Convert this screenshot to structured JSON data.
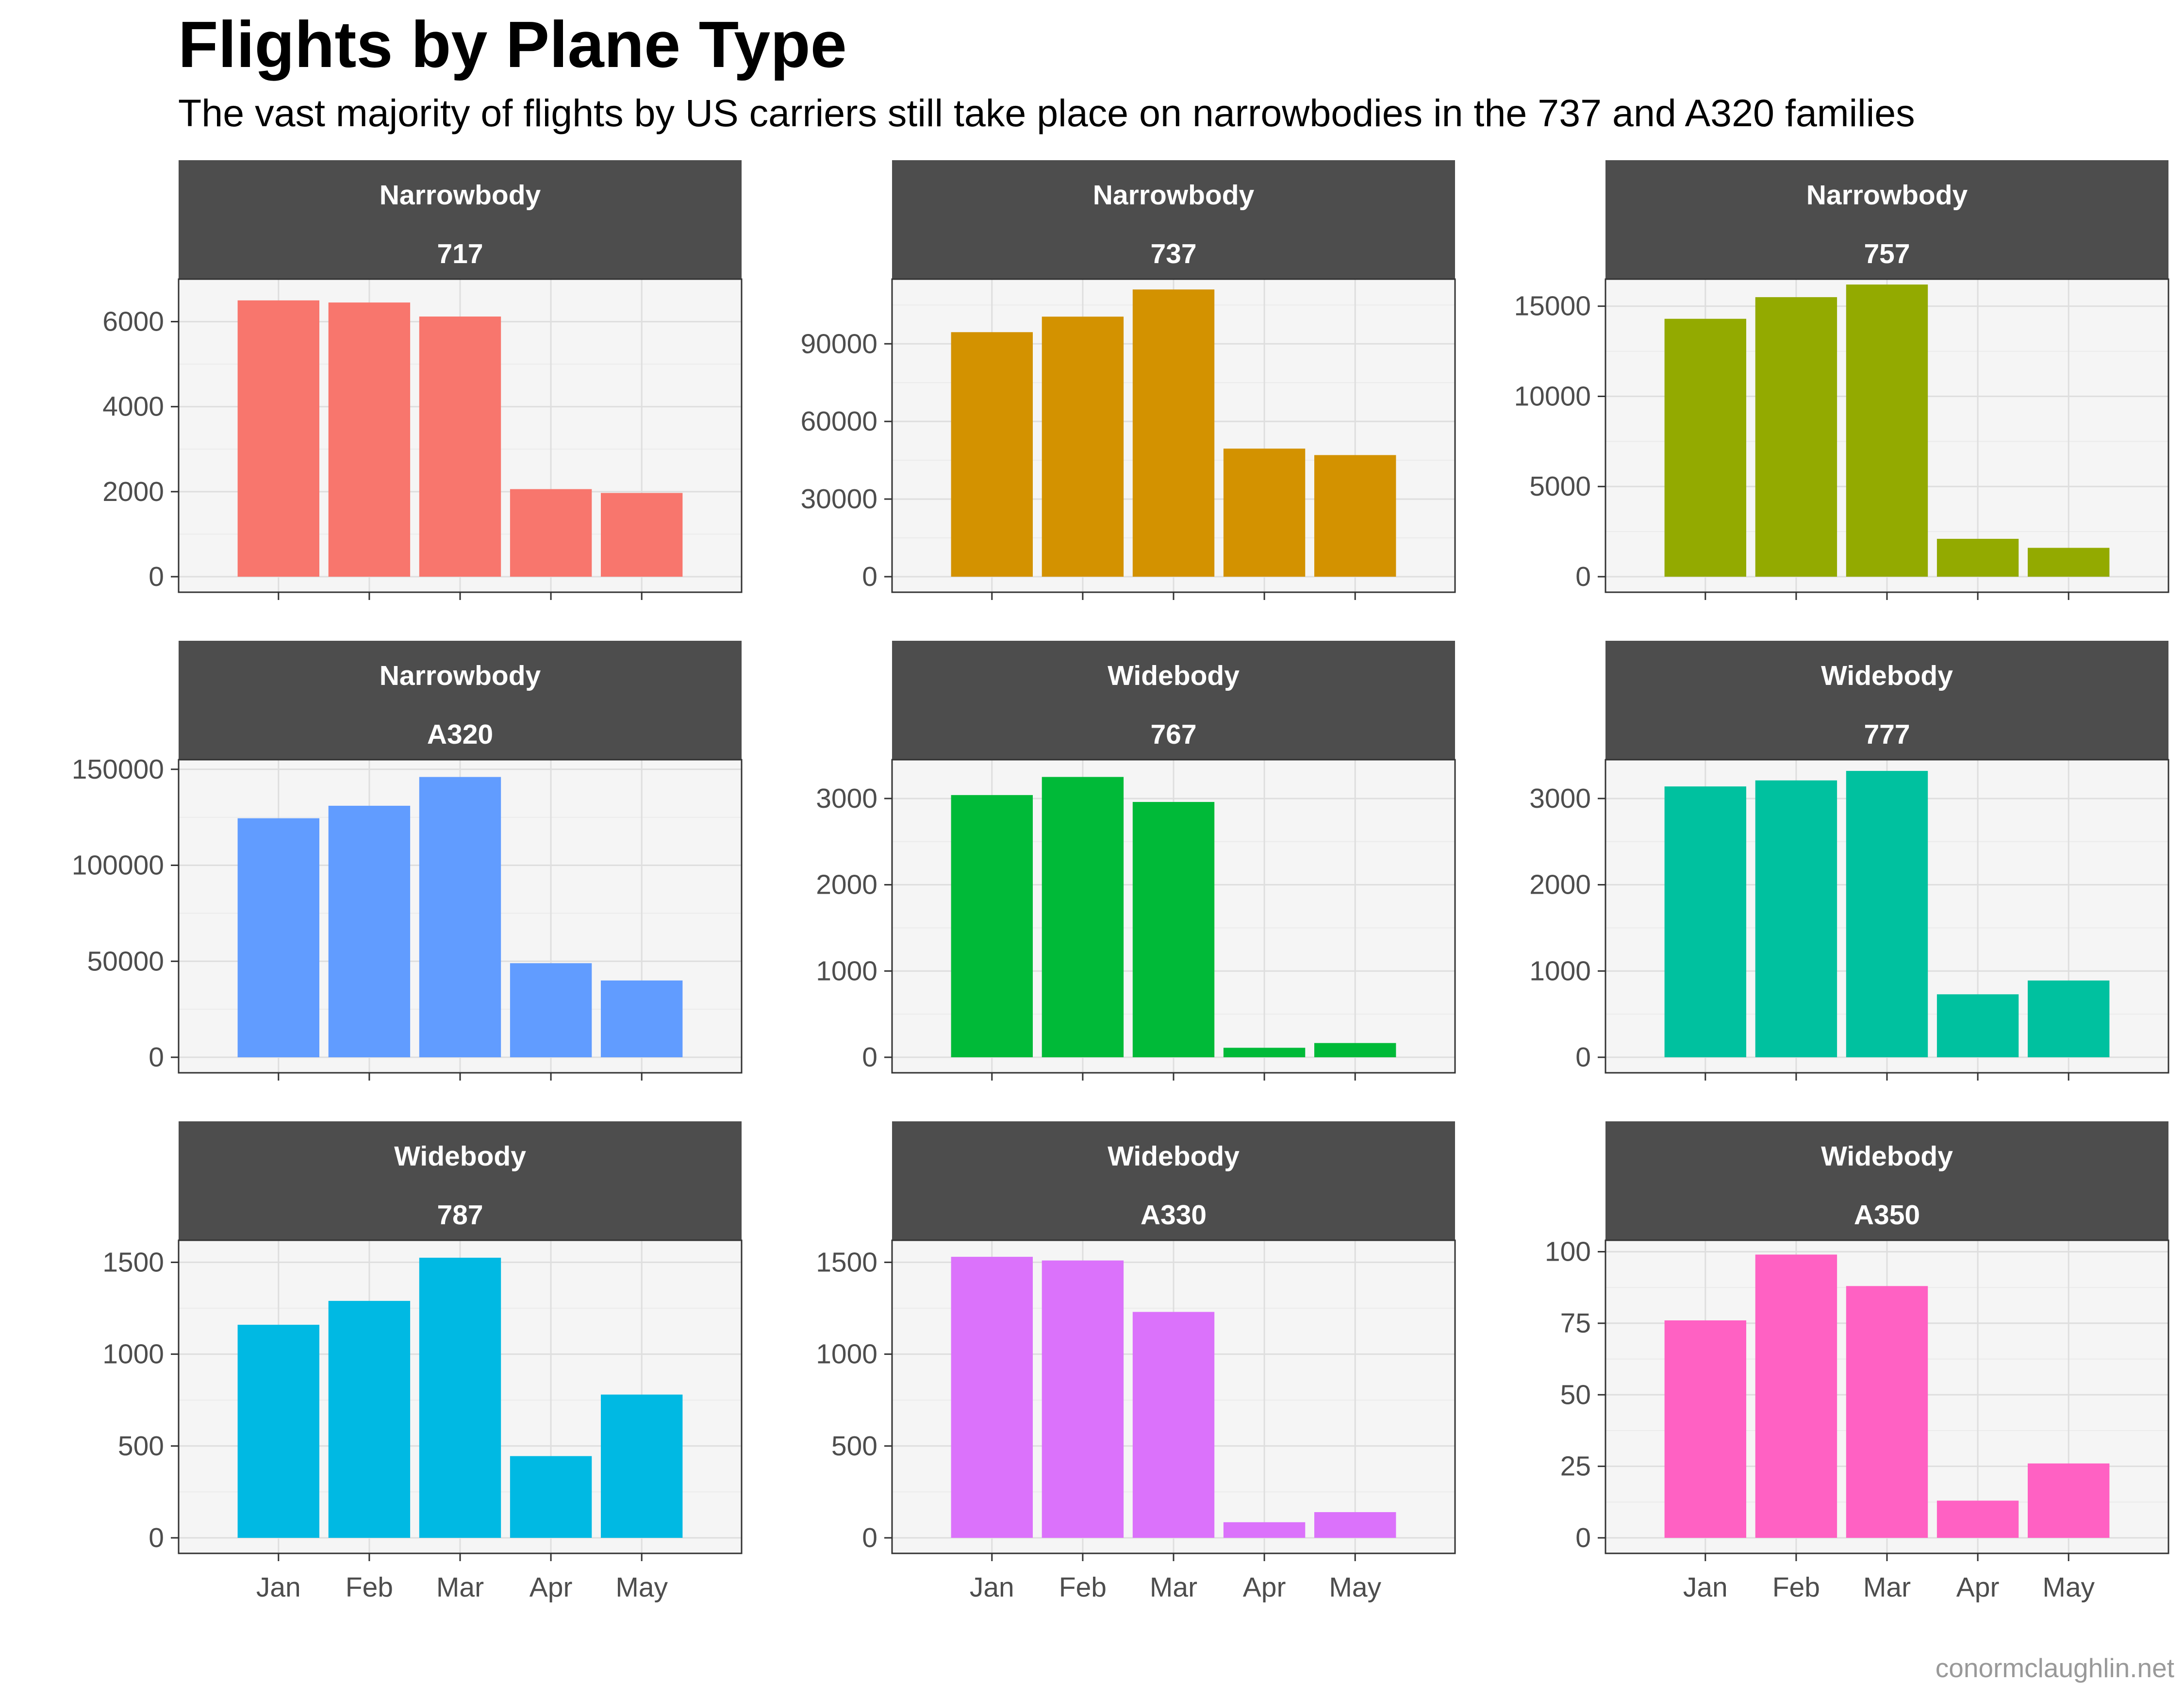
{
  "chart_data": {
    "type": "bar",
    "title": "Flights by Plane Type",
    "subtitle": "The vast majority of flights by US carriers still take place on narrowbodies in the 737 and A320 families",
    "caption": "conormclaughlin.net",
    "categories": [
      "Jan",
      "Feb",
      "Mar",
      "Apr",
      "May"
    ],
    "facets": [
      {
        "group": "Narrowbody",
        "type": "717",
        "color": "#F8766D",
        "ylim": [
          0,
          7000
        ],
        "yticks": [
          "0",
          "2000",
          "4000",
          "6000"
        ],
        "values": [
          6500,
          6450,
          6120,
          2060,
          1970
        ]
      },
      {
        "group": "Narrowbody",
        "type": "737",
        "color": "#D39200",
        "ylim": [
          0,
          115000
        ],
        "yticks": [
          "0",
          "30000",
          "60000",
          "90000"
        ],
        "values": [
          94500,
          100500,
          111000,
          49500,
          47000
        ]
      },
      {
        "group": "Narrowbody",
        "type": "757",
        "color": "#93AA00",
        "ylim": [
          0,
          16500
        ],
        "yticks": [
          "0",
          "5000",
          "10000",
          "15000"
        ],
        "values": [
          14300,
          15500,
          16200,
          2100,
          1600
        ]
      },
      {
        "group": "Narrowbody",
        "type": "A320",
        "color": "#619CFF",
        "ylim": [
          0,
          155000
        ],
        "yticks": [
          "0",
          "50000",
          "100000",
          "150000"
        ],
        "values": [
          124500,
          131000,
          146000,
          49000,
          40000
        ]
      },
      {
        "group": "Widebody",
        "type": "767",
        "color": "#00BA38",
        "ylim": [
          0,
          3450
        ],
        "yticks": [
          "0",
          "1000",
          "2000",
          "3000"
        ],
        "values": [
          3040,
          3250,
          2960,
          110,
          165
        ]
      },
      {
        "group": "Widebody",
        "type": "777",
        "color": "#00C19F",
        "ylim": [
          0,
          3450
        ],
        "yticks": [
          "0",
          "1000",
          "2000",
          "3000"
        ],
        "values": [
          3140,
          3210,
          3320,
          730,
          890
        ]
      },
      {
        "group": "Widebody",
        "type": "787",
        "color": "#00B9E3",
        "ylim": [
          0,
          1620
        ],
        "yticks": [
          "0",
          "500",
          "1000",
          "1500"
        ],
        "values": [
          1160,
          1290,
          1525,
          445,
          780
        ]
      },
      {
        "group": "Widebody",
        "type": "A330",
        "color": "#DB72FB",
        "ylim": [
          0,
          1620
        ],
        "yticks": [
          "0",
          "500",
          "1000",
          "1500"
        ],
        "values": [
          1530,
          1510,
          1230,
          85,
          140
        ]
      },
      {
        "group": "Widebody",
        "type": "A350",
        "color": "#FF61C3",
        "ylim": [
          0,
          104
        ],
        "yticks": [
          "0",
          "25",
          "50",
          "75",
          "100"
        ],
        "values": [
          76,
          99,
          88,
          13,
          26
        ]
      }
    ]
  }
}
